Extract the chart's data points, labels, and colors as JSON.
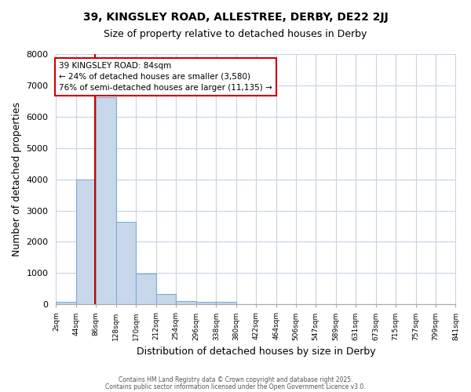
{
  "title_line1": "39, KINGSLEY ROAD, ALLESTREE, DERBY, DE22 2JJ",
  "title_line2": "Size of property relative to detached houses in Derby",
  "xlabel": "Distribution of detached houses by size in Derby",
  "ylabel": "Number of detached properties",
  "bin_edges": [
    2,
    44,
    86,
    128,
    170,
    212,
    254,
    296,
    338,
    380,
    422,
    464,
    506,
    547,
    589,
    631,
    673,
    715,
    757,
    799,
    841
  ],
  "bin_labels": [
    "2sqm",
    "44sqm",
    "86sqm",
    "128sqm",
    "170sqm",
    "212sqm",
    "254sqm",
    "296sqm",
    "338sqm",
    "380sqm",
    "422sqm",
    "464sqm",
    "506sqm",
    "547sqm",
    "589sqm",
    "631sqm",
    "673sqm",
    "715sqm",
    "757sqm",
    "799sqm",
    "841sqm"
  ],
  "bar_values": [
    80,
    4000,
    6620,
    2650,
    990,
    320,
    110,
    80,
    80,
    0,
    0,
    0,
    0,
    0,
    0,
    0,
    0,
    0,
    0,
    0
  ],
  "bar_color": "#c8d8ea",
  "bar_edgecolor": "#7baed4",
  "property_sqm": 84,
  "property_label": "39 KINGSLEY ROAD: 84sqm",
  "annotation_line2": "← 24% of detached houses are smaller (3,580)",
  "annotation_line3": "76% of semi-detached houses are larger (11,135) →",
  "annotation_box_edgecolor": "#cc0000",
  "vline_color": "#cc0000",
  "ylim": [
    0,
    8000
  ],
  "yticks": [
    0,
    1000,
    2000,
    3000,
    4000,
    5000,
    6000,
    7000,
    8000
  ],
  "grid_color": "#c8d4e4",
  "bg_color": "#ffffff",
  "plot_bg_color": "#ffffff",
  "footnote1": "Contains HM Land Registry data © Crown copyright and database right 2025.",
  "footnote2": "Contains public sector information licensed under the Open Government Licence v3.0."
}
